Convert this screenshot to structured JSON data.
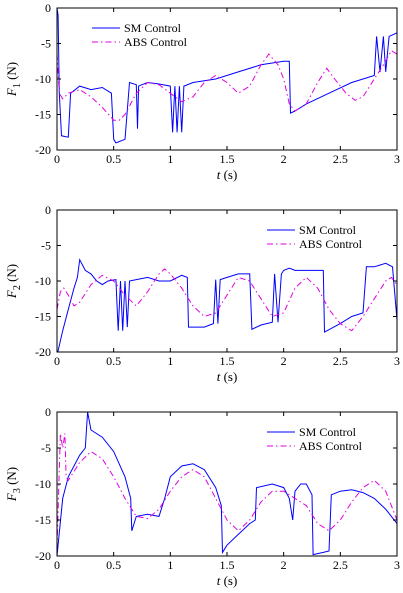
{
  "chart_data": [
    {
      "type": "line",
      "ylabel_main": "F",
      "ylabel_sub": "1",
      "ylabel_unit": "(N)",
      "xlabel_main": "t",
      "xlabel_unit": "(s)",
      "xlim": [
        0,
        3
      ],
      "ylim": [
        -20,
        0
      ],
      "x_ticks": [
        "0",
        "0.5",
        "1",
        "1.5",
        "2",
        "2.5",
        "3"
      ],
      "y_ticks": [
        "0",
        "-5",
        "-10",
        "-15",
        "-20"
      ],
      "legend_position": "top-left",
      "series": [
        {
          "name": "SM Control",
          "style": "solid",
          "color": "#0000ff",
          "points": [
            [
              0,
              0
            ],
            [
              0.01,
              -1
            ],
            [
              0.02,
              -12
            ],
            [
              0.04,
              -18
            ],
            [
              0.1,
              -18.2
            ],
            [
              0.12,
              -12
            ],
            [
              0.2,
              -11
            ],
            [
              0.3,
              -11.5
            ],
            [
              0.4,
              -11.2
            ],
            [
              0.48,
              -12
            ],
            [
              0.5,
              -18.5
            ],
            [
              0.52,
              -19
            ],
            [
              0.6,
              -18.5
            ],
            [
              0.64,
              -10.5
            ],
            [
              0.7,
              -10.8
            ],
            [
              0.71,
              -17
            ],
            [
              0.72,
              -11
            ],
            [
              0.75,
              -10.8
            ],
            [
              0.8,
              -10.5
            ],
            [
              0.9,
              -10.7
            ],
            [
              1.0,
              -11
            ],
            [
              1.02,
              -17.5
            ],
            [
              1.04,
              -11
            ],
            [
              1.06,
              -17.5
            ],
            [
              1.08,
              -11
            ],
            [
              1.1,
              -17.5
            ],
            [
              1.12,
              -11
            ],
            [
              1.2,
              -10.5
            ],
            [
              1.4,
              -10
            ],
            [
              1.6,
              -9
            ],
            [
              1.8,
              -8
            ],
            [
              2.0,
              -7.5
            ],
            [
              2.05,
              -7.5
            ],
            [
              2.06,
              -14.8
            ],
            [
              2.1,
              -14.5
            ],
            [
              2.2,
              -13.5
            ],
            [
              2.4,
              -12
            ],
            [
              2.6,
              -10.5
            ],
            [
              2.7,
              -10
            ],
            [
              2.8,
              -9.5
            ],
            [
              2.82,
              -4
            ],
            [
              2.85,
              -9
            ],
            [
              2.88,
              -4
            ],
            [
              2.9,
              -9
            ],
            [
              2.93,
              -4
            ],
            [
              3.0,
              -3.5
            ]
          ]
        },
        {
          "name": "ABS Control",
          "style": "dash-dot",
          "color": "#e000e0",
          "points": [
            [
              0,
              -6.5
            ],
            [
              0.02,
              -12
            ],
            [
              0.05,
              -12.8
            ],
            [
              0.1,
              -12
            ],
            [
              0.2,
              -11.5
            ],
            [
              0.3,
              -12.5
            ],
            [
              0.4,
              -14
            ],
            [
              0.5,
              -15.8
            ],
            [
              0.55,
              -15.8
            ],
            [
              0.6,
              -15
            ],
            [
              0.7,
              -12
            ],
            [
              0.8,
              -10.5
            ],
            [
              0.9,
              -10.8
            ],
            [
              1.0,
              -12
            ],
            [
              1.1,
              -13.2
            ],
            [
              1.2,
              -12.5
            ],
            [
              1.3,
              -10.5
            ],
            [
              1.4,
              -9.5
            ],
            [
              1.5,
              -10.5
            ],
            [
              1.6,
              -12
            ],
            [
              1.7,
              -11
            ],
            [
              1.8,
              -8
            ],
            [
              1.87,
              -6.5
            ],
            [
              1.95,
              -8
            ],
            [
              2.0,
              -10
            ],
            [
              2.05,
              -13.5
            ],
            [
              2.1,
              -14.5
            ],
            [
              2.2,
              -13.5
            ],
            [
              2.3,
              -10.5
            ],
            [
              2.38,
              -8.5
            ],
            [
              2.45,
              -10
            ],
            [
              2.55,
              -12
            ],
            [
              2.63,
              -13
            ],
            [
              2.7,
              -12.5
            ],
            [
              2.8,
              -10
            ],
            [
              2.9,
              -7.5
            ],
            [
              2.95,
              -6
            ],
            [
              3.0,
              -6.5
            ]
          ]
        }
      ]
    },
    {
      "type": "line",
      "ylabel_main": "F",
      "ylabel_sub": "2",
      "ylabel_unit": "(N)",
      "xlabel_main": "t",
      "xlabel_unit": "(s)",
      "xlim": [
        0,
        3
      ],
      "ylim": [
        -20,
        0
      ],
      "x_ticks": [
        "0",
        "0.5",
        "1",
        "1.5",
        "2",
        "2.5",
        "3"
      ],
      "y_ticks": [
        "0",
        "-5",
        "-10",
        "-15",
        "-20"
      ],
      "legend_position": "top-right",
      "series": [
        {
          "name": "SM Control",
          "style": "solid",
          "color": "#0000ff",
          "points": [
            [
              0,
              -20.5
            ],
            [
              0.05,
              -17
            ],
            [
              0.1,
              -14
            ],
            [
              0.15,
              -11
            ],
            [
              0.18,
              -9.5
            ],
            [
              0.2,
              -7
            ],
            [
              0.25,
              -8.5
            ],
            [
              0.3,
              -9
            ],
            [
              0.35,
              -10
            ],
            [
              0.4,
              -10.5
            ],
            [
              0.45,
              -10
            ],
            [
              0.52,
              -9.8
            ],
            [
              0.54,
              -17
            ],
            [
              0.56,
              -10
            ],
            [
              0.58,
              -17
            ],
            [
              0.6,
              -10
            ],
            [
              0.62,
              -16.5
            ],
            [
              0.64,
              -10
            ],
            [
              0.7,
              -9.8
            ],
            [
              0.8,
              -9.5
            ],
            [
              0.9,
              -10
            ],
            [
              1.0,
              -10
            ],
            [
              1.1,
              -9.2
            ],
            [
              1.15,
              -9.5
            ],
            [
              1.16,
              -16.5
            ],
            [
              1.2,
              -16.5
            ],
            [
              1.3,
              -16.5
            ],
            [
              1.38,
              -16
            ],
            [
              1.4,
              -9.8
            ],
            [
              1.42,
              -16
            ],
            [
              1.44,
              -9.8
            ],
            [
              1.5,
              -9.5
            ],
            [
              1.6,
              -9
            ],
            [
              1.7,
              -9
            ],
            [
              1.72,
              -16.8
            ],
            [
              1.8,
              -16.2
            ],
            [
              1.9,
              -15.8
            ],
            [
              1.92,
              -9
            ],
            [
              1.95,
              -15.8
            ],
            [
              1.98,
              -9
            ],
            [
              2.0,
              -8.5
            ],
            [
              2.05,
              -8.2
            ],
            [
              2.1,
              -8.5
            ],
            [
              2.3,
              -8.5
            ],
            [
              2.35,
              -8.5
            ],
            [
              2.36,
              -17.2
            ],
            [
              2.5,
              -16
            ],
            [
              2.6,
              -15
            ],
            [
              2.7,
              -14.5
            ],
            [
              2.73,
              -8
            ],
            [
              2.8,
              -8
            ],
            [
              2.9,
              -7.5
            ],
            [
              2.96,
              -8
            ],
            [
              3.0,
              -15.5
            ]
          ]
        },
        {
          "name": "ABS Control",
          "style": "dash-dot",
          "color": "#e000e0",
          "points": [
            [
              0,
              -14
            ],
            [
              0.03,
              -11.5
            ],
            [
              0.06,
              -11
            ],
            [
              0.1,
              -12
            ],
            [
              0.15,
              -13.5
            ],
            [
              0.2,
              -13
            ],
            [
              0.3,
              -10.5
            ],
            [
              0.4,
              -9.2
            ],
            [
              0.5,
              -10
            ],
            [
              0.6,
              -12
            ],
            [
              0.7,
              -13.5
            ],
            [
              0.8,
              -11.5
            ],
            [
              0.9,
              -9
            ],
            [
              0.95,
              -8.3
            ],
            [
              1.0,
              -9
            ],
            [
              1.1,
              -11
            ],
            [
              1.2,
              -13.5
            ],
            [
              1.3,
              -15
            ],
            [
              1.4,
              -14.5
            ],
            [
              1.5,
              -12
            ],
            [
              1.6,
              -9.5
            ],
            [
              1.7,
              -10
            ],
            [
              1.8,
              -12.5
            ],
            [
              1.9,
              -15
            ],
            [
              2.0,
              -14.5
            ],
            [
              2.1,
              -11
            ],
            [
              2.2,
              -9.5
            ],
            [
              2.3,
              -11
            ],
            [
              2.4,
              -14
            ],
            [
              2.5,
              -16
            ],
            [
              2.6,
              -17
            ],
            [
              2.7,
              -15
            ],
            [
              2.8,
              -12.5
            ],
            [
              2.9,
              -10
            ],
            [
              2.95,
              -9.5
            ],
            [
              3.0,
              -10.5
            ]
          ]
        }
      ]
    },
    {
      "type": "line",
      "ylabel_main": "F",
      "ylabel_sub": "3",
      "ylabel_unit": "(N)",
      "xlabel_main": "t",
      "xlabel_unit": "(s)",
      "xlim": [
        0,
        3
      ],
      "ylim": [
        -20,
        0
      ],
      "x_ticks": [
        "0",
        "0.5",
        "1",
        "1.5",
        "2",
        "2.5",
        "3"
      ],
      "y_ticks": [
        "0",
        "-5",
        "-10",
        "-15",
        "-20"
      ],
      "legend_position": "top-right",
      "series": [
        {
          "name": "SM Control",
          "style": "solid",
          "color": "#0000ff",
          "points": [
            [
              0,
              -20
            ],
            [
              0.05,
              -12
            ],
            [
              0.1,
              -9
            ],
            [
              0.2,
              -6
            ],
            [
              0.25,
              -5
            ],
            [
              0.27,
              0
            ],
            [
              0.3,
              -2.5
            ],
            [
              0.4,
              -3.5
            ],
            [
              0.5,
              -5.5
            ],
            [
              0.6,
              -9
            ],
            [
              0.65,
              -12
            ],
            [
              0.66,
              -16.5
            ],
            [
              0.7,
              -14.5
            ],
            [
              0.8,
              -14.2
            ],
            [
              0.9,
              -14.5
            ],
            [
              0.95,
              -12
            ],
            [
              1.0,
              -9
            ],
            [
              1.1,
              -7.5
            ],
            [
              1.2,
              -7.2
            ],
            [
              1.3,
              -8
            ],
            [
              1.4,
              -10.5
            ],
            [
              1.45,
              -13
            ],
            [
              1.46,
              -19.5
            ],
            [
              1.5,
              -18.5
            ],
            [
              1.6,
              -17
            ],
            [
              1.7,
              -15.5
            ],
            [
              1.75,
              -15
            ],
            [
              1.76,
              -10.5
            ],
            [
              1.9,
              -10
            ],
            [
              2.0,
              -10.5
            ],
            [
              2.05,
              -12
            ],
            [
              2.08,
              -15
            ],
            [
              2.1,
              -11
            ],
            [
              2.15,
              -10
            ],
            [
              2.2,
              -10
            ],
            [
              2.25,
              -11.5
            ],
            [
              2.26,
              -19.8
            ],
            [
              2.35,
              -19.5
            ],
            [
              2.4,
              -19.3
            ],
            [
              2.42,
              -11.5
            ],
            [
              2.5,
              -11
            ],
            [
              2.6,
              -10.8
            ],
            [
              2.7,
              -11.2
            ],
            [
              2.8,
              -12
            ],
            [
              2.9,
              -13.5
            ],
            [
              3.0,
              -15.5
            ]
          ]
        },
        {
          "name": "ABS Control",
          "style": "dash-dot",
          "color": "#e000e0",
          "points": [
            [
              0,
              -19
            ],
            [
              0.02,
              -8
            ],
            [
              0.03,
              -3
            ],
            [
              0.05,
              -5
            ],
            [
              0.07,
              -3
            ],
            [
              0.08,
              -9
            ],
            [
              0.1,
              -9.5
            ],
            [
              0.2,
              -7
            ],
            [
              0.3,
              -5.5
            ],
            [
              0.4,
              -6.5
            ],
            [
              0.5,
              -9
            ],
            [
              0.6,
              -12
            ],
            [
              0.7,
              -14.5
            ],
            [
              0.8,
              -14.8
            ],
            [
              0.9,
              -13.5
            ],
            [
              1.0,
              -11
            ],
            [
              1.1,
              -9
            ],
            [
              1.2,
              -8
            ],
            [
              1.3,
              -9
            ],
            [
              1.4,
              -12
            ],
            [
              1.5,
              -15
            ],
            [
              1.6,
              -16.5
            ],
            [
              1.7,
              -15
            ],
            [
              1.8,
              -12.5
            ],
            [
              1.9,
              -11
            ],
            [
              2.0,
              -11
            ],
            [
              2.1,
              -12
            ],
            [
              2.2,
              -13
            ],
            [
              2.3,
              -15.5
            ],
            [
              2.4,
              -16.5
            ],
            [
              2.5,
              -15
            ],
            [
              2.6,
              -12.5
            ],
            [
              2.7,
              -10.5
            ],
            [
              2.8,
              -9.5
            ],
            [
              2.9,
              -11
            ],
            [
              3.0,
              -15
            ]
          ]
        }
      ]
    }
  ]
}
